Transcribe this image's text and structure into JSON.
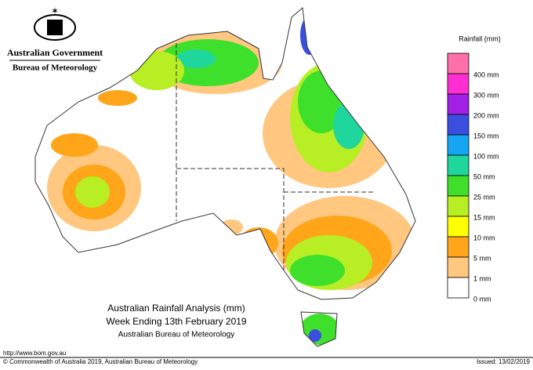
{
  "header": {
    "agency": "Australian Government",
    "bureau": "Bureau of Meteorology"
  },
  "legend": {
    "title": "Rainfall (mm)",
    "items": [
      {
        "label": null,
        "color": "#ff6fa8"
      },
      {
        "label": "400 mm",
        "color": "#ff2ed2"
      },
      {
        "label": "300 mm",
        "color": "#a21fe6"
      },
      {
        "label": "200 mm",
        "color": "#3c4ee0"
      },
      {
        "label": "150 mm",
        "color": "#14a6f2"
      },
      {
        "label": "100 mm",
        "color": "#1fd69c"
      },
      {
        "label": "50 mm",
        "color": "#3fe02c"
      },
      {
        "label": "25 mm",
        "color": "#b8ee24"
      },
      {
        "label": "15 mm",
        "color": "#ffff00"
      },
      {
        "label": "10 mm",
        "color": "#ffa51a"
      },
      {
        "label": "5 mm",
        "color": "#ffc77f"
      },
      {
        "label": "1 mm",
        "color": "#ffffff"
      }
    ],
    "bottom_label": "0 mm"
  },
  "title": {
    "line1": "Australian Rainfall Analysis (mm)",
    "line2": "Week Ending 13th February 2019",
    "line3": "Australian Bureau of Meteorology"
  },
  "footer": {
    "url": "http://www.bom.gov.au",
    "copyright": "© Commonwealth of Australia 2019, Australian Bureau of Meteorology",
    "issued": "Issued: 13/02/2019"
  }
}
